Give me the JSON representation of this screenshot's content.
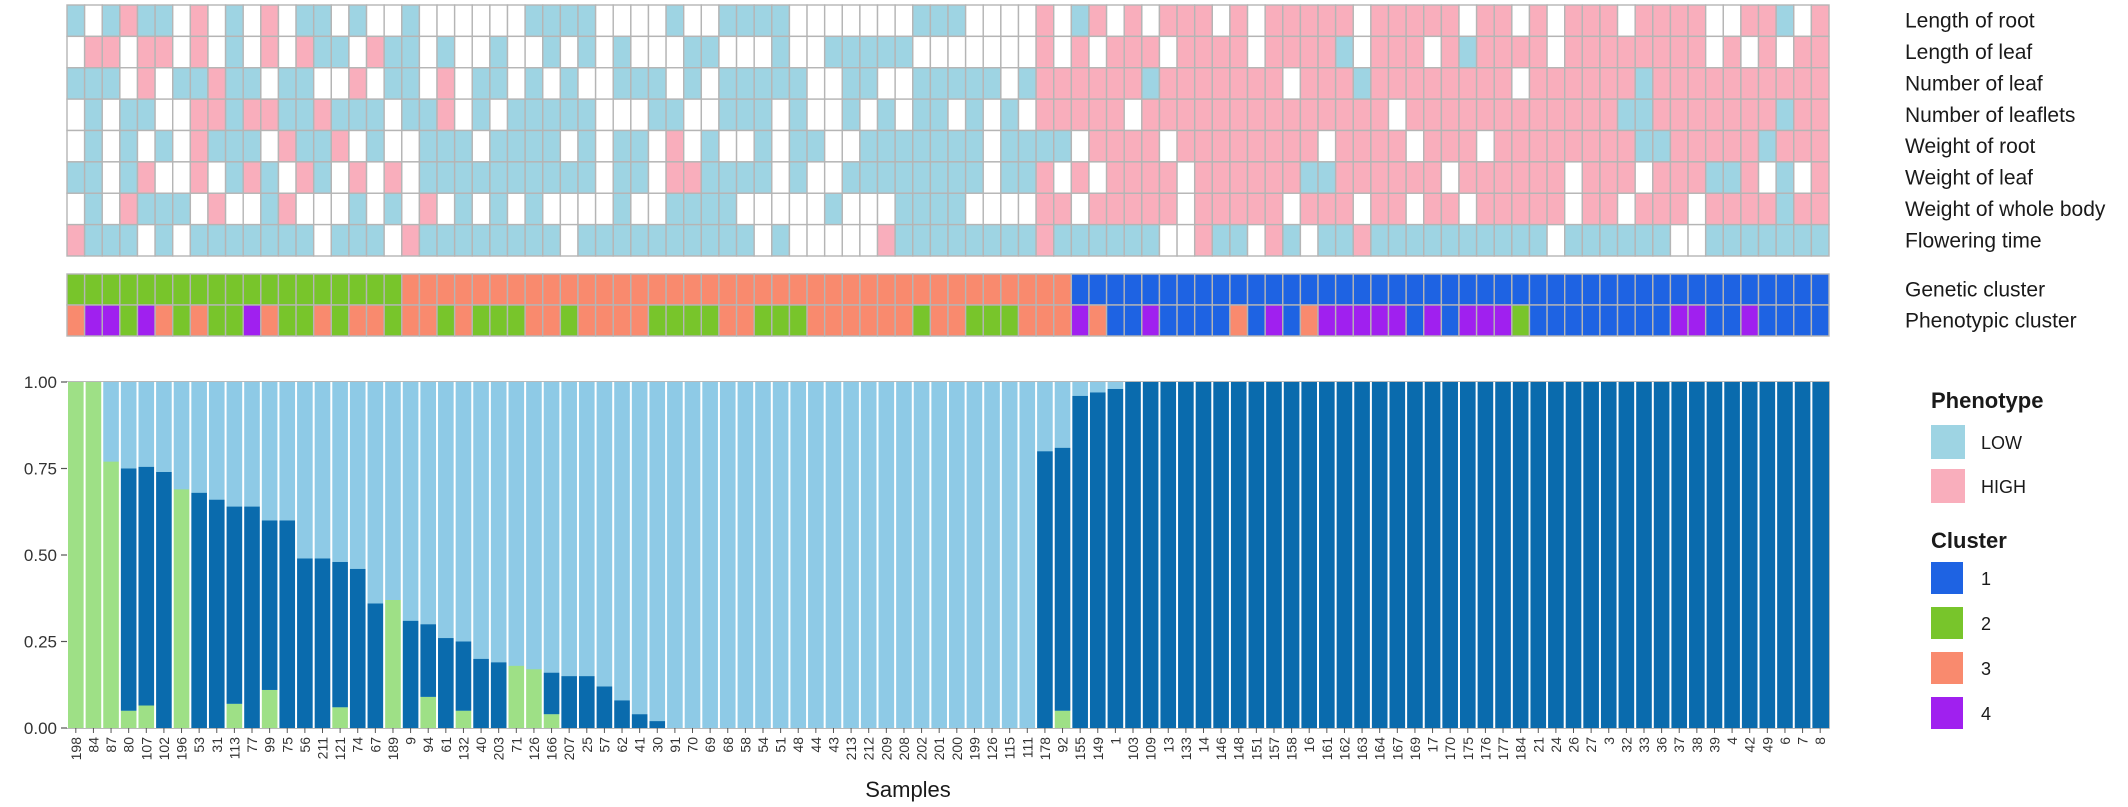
{
  "colors": {
    "low": "#9ED4E3",
    "high": "#F9AEBC",
    "empty": "#FFFFFF",
    "grid": "#B5B5B5",
    "cluster1": "#1E63E3",
    "cluster2": "#78C52B",
    "cluster3": "#F98A6E",
    "cluster4": "#A020EF",
    "barLow": "#8ECAE6",
    "barDark": "#0A6BAD",
    "barLight": "#9EE086"
  },
  "chart_data": {
    "type": "bar",
    "xlabel": "Samples",
    "ylabel": "",
    "ylim": [
      0,
      1
    ],
    "yticks": [
      "0.00",
      "0.25",
      "0.50",
      "0.75",
      "1.00"
    ],
    "categories": [
      "198",
      "84",
      "87",
      "80",
      "107",
      "102",
      "196",
      "53",
      "31",
      "113",
      "77",
      "99",
      "75",
      "56",
      "211",
      "121",
      "74",
      "67",
      "189",
      "9",
      "94",
      "61",
      "132",
      "40",
      "203",
      "71",
      "126",
      "166",
      "207",
      "25",
      "57",
      "62",
      "41",
      "30",
      "91",
      "70",
      "69",
      "68",
      "58",
      "54",
      "51",
      "48",
      "44",
      "43",
      "213",
      "212",
      "209",
      "208",
      "202",
      "201",
      "200",
      "199",
      "126",
      "115",
      "111",
      "178",
      "92",
      "155",
      "149",
      "1",
      "103",
      "109",
      "13",
      "133",
      "14",
      "146",
      "148",
      "151",
      "157",
      "158",
      "16",
      "161",
      "162",
      "163",
      "164",
      "167",
      "169",
      "17",
      "170",
      "175",
      "176",
      "177",
      "184",
      "21",
      "24",
      "26",
      "27",
      "3",
      "32",
      "33",
      "36",
      "37",
      "38",
      "39",
      "4",
      "42",
      "49",
      "6",
      "7",
      "8"
    ],
    "series": [
      {
        "values": [
          0,
          0,
          0,
          0.7,
          0.69,
          0.74,
          0,
          0.68,
          0.66,
          0.57,
          0.64,
          0.49,
          0.6,
          0.49,
          0.49,
          0.42,
          0.46,
          0.36,
          0,
          0.31,
          0.21,
          0.26,
          0.2,
          0.2,
          0.19,
          0,
          0,
          0.12,
          0.15,
          0.15,
          0.12,
          0.08,
          0.04,
          0.02,
          0,
          0,
          0,
          0,
          0,
          0,
          0,
          0,
          0,
          0,
          0,
          0,
          0,
          0,
          0,
          0,
          0,
          0,
          0,
          0,
          0,
          0.8,
          0.76,
          0.96,
          0.97,
          0.98,
          1,
          1,
          1,
          1,
          1,
          1,
          1,
          1,
          1,
          1,
          1,
          1,
          1,
          1,
          1,
          1,
          1,
          1,
          1,
          1,
          1,
          1,
          1,
          1,
          1,
          1,
          1,
          1,
          1,
          1,
          1,
          1,
          1,
          1,
          1,
          1,
          1,
          1,
          1,
          1
        ]
      },
      {
        "values": [
          1,
          1,
          0.77,
          0.05,
          0.065,
          0,
          0.69,
          0,
          0,
          0.07,
          0,
          0.11,
          0,
          0,
          0,
          0.06,
          0,
          0,
          0.37,
          0,
          0.09,
          0,
          0.05,
          0,
          0,
          0.18,
          0.17,
          0.04,
          0,
          0,
          0,
          0,
          0,
          0,
          0,
          0,
          0,
          0,
          0,
          0,
          0,
          0,
          0,
          0,
          0,
          0,
          0,
          0,
          0,
          0,
          0,
          0,
          0,
          0,
          0,
          0,
          0.05,
          0,
          0,
          0,
          0,
          0,
          0,
          0,
          0,
          0,
          0,
          0,
          0,
          0,
          0,
          0,
          0,
          0,
          0,
          0,
          0,
          0,
          0,
          0,
          0,
          0,
          0,
          0,
          0,
          0,
          0,
          0,
          0,
          0,
          0,
          0,
          0,
          0,
          0,
          0,
          0,
          0,
          0,
          0
        ]
      }
    ],
    "heatmap": {
      "rows": [
        "Length of root",
        "Length of leaf",
        "Number of leaf",
        "Number of leaflets",
        "Weight of root",
        "Weight of leaf",
        "Weight of whole body",
        "Flowering time"
      ],
      "cells": [
        "LWLHLLWHWLWHWLLWLWWLWWWWWWLLLLWWWWLWWLLLLWWWWWWWLLLWWWWHWLHWHWHHHWHWHHHHHWHHHHHWHHWHWHHHWHHHHWWHHLWH",
        "WHHWHHWHWLWHWHLLWHLLWLWWLWWLWLWLWWWLLWWWLWWLLLLLWWWWWWWHWHWHHHWHHHHWHHHHLWHHHWHLHHHHWHHHHHHHHWHWHWHH",
        "LLLWHWLLHLLWLLWWHWLLWHWLLWLWLWWLLLWLWLLLLLWWLLWWLLLLLWLHHHHHHLHHHHHHHWHHHLHHHHHHHHWHHHHHHLHHHHHHHHHH",
        "WLWLLWWHHLHHLLHLLLWLLHWLWLLLLLWWWLLWWLLLWLWWLWLWLLWLWLWHHHHHWHHHHHHHHHHHHHHWHHHHHHHHHHHHLLHHHHHHHLHH",
        "WLWLWLWHLLLWHLLHWLWWLLLWLLLLWLWLLWHWLWWLWLLWWLLLLLLLWLLLLWHHHHWHHHHHHHHWHHHHWHHHWHHHHHHHHLLHHHHHLHHH",
        "LLWLHWWHWLHLWHLWHWHWLLLLLLLLLLWLLWHHLLLLWLWWLLLLLLLLWLLHWHWHHHHWHHHHHHLLHHHHHHWHHHHHHWHHHWHHHLLHWLWH",
        "WLWHLLLWHWWLHWWWLWLWHWLWLWLWWWWLWWLLLLWWWWWLWWWLLLLWWWWHHWHHHHHWHHHHHWHHHWHHWHHWHHHHHWHHWHHHWHHHHLHH",
        "HLLLWLWLLLLLLLWLLLWHLLLLLLLLWLLLLLLLLLLWLWWWWWHLLLLLLLLHLLLLLLWWHLLWHLWLLHLLLLLLLLLLWLLLLLLWWLLLLLLL"
      ]
    },
    "cluster_rows": [
      {
        "name": "Genetic cluster",
        "values": "2222222222222222222333333333333333333333333333333333333331111111111111111111111111111111111111111111111"
      },
      {
        "name": "Phenotypic cluster",
        "values": "3442432322432232332332322233233332222332223333332332223334311411113141344444141444211111111441141111"
      }
    ],
    "legend": {
      "phenotype_title": "Phenotype",
      "phenotype_items": [
        "LOW",
        "HIGH"
      ],
      "cluster_title": "Cluster",
      "cluster_items": [
        "1",
        "2",
        "3",
        "4"
      ]
    }
  }
}
